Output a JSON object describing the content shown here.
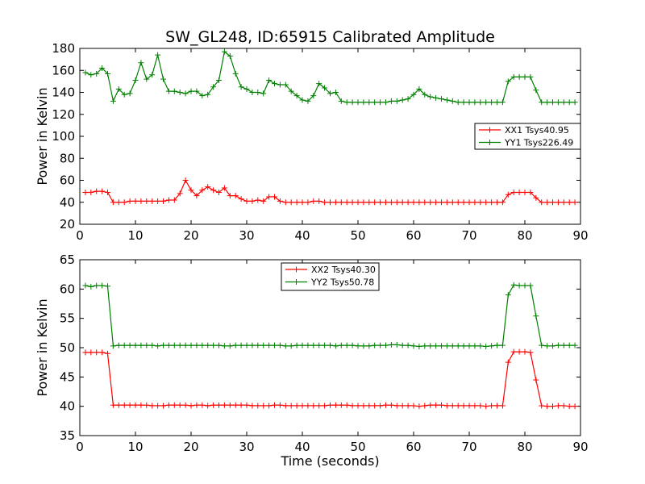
{
  "colors": {
    "xx": "#ff0000",
    "yy": "#008000"
  },
  "chart_data": [
    {
      "type": "line",
      "title": "SW_GL248, ID:65915 Calibrated Amplitude",
      "xlabel": "",
      "ylabel": "Power in Kelvin",
      "xlim": [
        0,
        90
      ],
      "ylim": [
        20,
        180
      ],
      "xticks": [
        0,
        10,
        20,
        30,
        40,
        50,
        60,
        70,
        80,
        90
      ],
      "yticks": [
        20,
        40,
        60,
        80,
        100,
        120,
        140,
        160,
        180
      ],
      "legend_position": "center-right",
      "x": [
        1,
        2,
        3,
        4,
        5,
        6,
        7,
        8,
        9,
        10,
        11,
        12,
        13,
        14,
        15,
        16,
        17,
        18,
        19,
        20,
        21,
        22,
        23,
        24,
        25,
        26,
        27,
        28,
        29,
        30,
        31,
        32,
        33,
        34,
        35,
        36,
        37,
        38,
        39,
        40,
        41,
        42,
        43,
        44,
        45,
        46,
        47,
        48,
        49,
        50,
        51,
        52,
        53,
        54,
        55,
        56,
        57,
        58,
        59,
        60,
        61,
        62,
        63,
        64,
        65,
        66,
        67,
        68,
        69,
        70,
        71,
        72,
        73,
        74,
        75,
        76,
        77,
        78,
        79,
        80,
        81,
        82,
        83,
        84,
        85,
        86,
        87,
        88,
        89
      ],
      "series": [
        {
          "name": "XX1 Tsys40.95",
          "color": "#ff0000",
          "values": [
            49,
            49,
            50,
            50,
            49,
            40,
            40,
            40,
            41,
            41,
            41,
            41,
            41,
            41,
            41,
            42,
            42,
            48,
            60,
            51,
            46,
            51,
            54,
            51,
            49,
            53,
            46,
            46,
            43,
            41,
            41,
            42,
            41,
            45,
            45,
            41,
            40,
            40,
            40,
            40,
            40,
            41,
            41,
            40,
            40,
            40,
            40,
            40,
            40,
            40,
            40,
            40,
            40,
            40,
            40,
            40,
            40,
            40,
            40,
            40,
            40,
            40,
            40,
            40,
            40,
            40,
            40,
            40,
            40,
            40,
            40,
            40,
            40,
            40,
            40,
            40,
            47,
            49,
            49,
            49,
            49,
            44,
            40,
            40,
            40,
            40,
            40,
            40,
            40
          ]
        },
        {
          "name": "YY1 Tsys226.49",
          "color": "#008000",
          "values": [
            158,
            156,
            157,
            162,
            157,
            132,
            143,
            138,
            139,
            151,
            167,
            152,
            156,
            174,
            152,
            141,
            141,
            140,
            139,
            141,
            141,
            137,
            138,
            145,
            151,
            177,
            173,
            157,
            145,
            143,
            140,
            140,
            139,
            151,
            148,
            147,
            147,
            141,
            137,
            133,
            132,
            137,
            148,
            144,
            139,
            140,
            132,
            131,
            131,
            131,
            131,
            131,
            131,
            131,
            131,
            132,
            132,
            133,
            134,
            138,
            143,
            138,
            136,
            135,
            134,
            133,
            132,
            131,
            131,
            131,
            131,
            131,
            131,
            131,
            131,
            131,
            150,
            154,
            154,
            154,
            154,
            142,
            131,
            131,
            131,
            131,
            131,
            131,
            131
          ]
        }
      ]
    },
    {
      "type": "line",
      "title": "",
      "xlabel": "Time (seconds)",
      "ylabel": "Power in Kelvin",
      "xlim": [
        0,
        90
      ],
      "ylim": [
        35,
        65
      ],
      "xticks": [
        0,
        10,
        20,
        30,
        40,
        50,
        60,
        70,
        80,
        90
      ],
      "yticks": [
        35,
        40,
        45,
        50,
        55,
        60,
        65
      ],
      "legend_position": "upper-center",
      "x": [
        1,
        2,
        3,
        4,
        5,
        6,
        7,
        8,
        9,
        10,
        11,
        12,
        13,
        14,
        15,
        16,
        17,
        18,
        19,
        20,
        21,
        22,
        23,
        24,
        25,
        26,
        27,
        28,
        29,
        30,
        31,
        32,
        33,
        34,
        35,
        36,
        37,
        38,
        39,
        40,
        41,
        42,
        43,
        44,
        45,
        46,
        47,
        48,
        49,
        50,
        51,
        52,
        53,
        54,
        55,
        56,
        57,
        58,
        59,
        60,
        61,
        62,
        63,
        64,
        65,
        66,
        67,
        68,
        69,
        70,
        71,
        72,
        73,
        74,
        75,
        76,
        77,
        78,
        79,
        80,
        81,
        82,
        83,
        84,
        85,
        86,
        87,
        88,
        89
      ],
      "series": [
        {
          "name": "XX2 Tsys40.30",
          "color": "#ff0000",
          "values": [
            49.2,
            49.2,
            49.2,
            49.2,
            49.0,
            40.2,
            40.2,
            40.2,
            40.2,
            40.2,
            40.2,
            40.2,
            40.1,
            40.1,
            40.1,
            40.2,
            40.2,
            40.2,
            40.2,
            40.1,
            40.2,
            40.2,
            40.1,
            40.2,
            40.2,
            40.2,
            40.2,
            40.2,
            40.2,
            40.2,
            40.1,
            40.1,
            40.1,
            40.1,
            40.2,
            40.2,
            40.1,
            40.1,
            40.1,
            40.1,
            40.1,
            40.1,
            40.1,
            40.1,
            40.2,
            40.2,
            40.2,
            40.2,
            40.1,
            40.1,
            40.1,
            40.1,
            40.1,
            40.1,
            40.2,
            40.2,
            40.1,
            40.1,
            40.1,
            40.1,
            40.0,
            40.1,
            40.2,
            40.2,
            40.2,
            40.1,
            40.1,
            40.1,
            40.1,
            40.1,
            40.1,
            40.1,
            40.0,
            40.1,
            40.1,
            40.1,
            47.5,
            49.3,
            49.3,
            49.3,
            49.2,
            44.5,
            40.1,
            40.0,
            40.0,
            40.1,
            40.1,
            40.0,
            40.0
          ]
        },
        {
          "name": "YY2 Tsys50.78",
          "color": "#008000",
          "values": [
            60.6,
            60.4,
            60.6,
            60.6,
            60.5,
            50.3,
            50.4,
            50.4,
            50.4,
            50.4,
            50.4,
            50.4,
            50.4,
            50.3,
            50.4,
            50.4,
            50.4,
            50.4,
            50.4,
            50.4,
            50.4,
            50.4,
            50.4,
            50.4,
            50.4,
            50.3,
            50.3,
            50.4,
            50.4,
            50.4,
            50.4,
            50.4,
            50.4,
            50.4,
            50.4,
            50.4,
            50.3,
            50.3,
            50.4,
            50.4,
            50.4,
            50.4,
            50.4,
            50.4,
            50.4,
            50.3,
            50.4,
            50.4,
            50.4,
            50.3,
            50.3,
            50.3,
            50.4,
            50.4,
            50.4,
            50.5,
            50.5,
            50.4,
            50.4,
            50.3,
            50.2,
            50.3,
            50.3,
            50.3,
            50.3,
            50.3,
            50.3,
            50.3,
            50.3,
            50.3,
            50.3,
            50.3,
            50.2,
            50.3,
            50.4,
            50.4,
            59.0,
            60.7,
            60.6,
            60.6,
            60.6,
            55.4,
            50.4,
            50.3,
            50.3,
            50.4,
            50.4,
            50.4,
            50.4
          ]
        }
      ]
    }
  ]
}
